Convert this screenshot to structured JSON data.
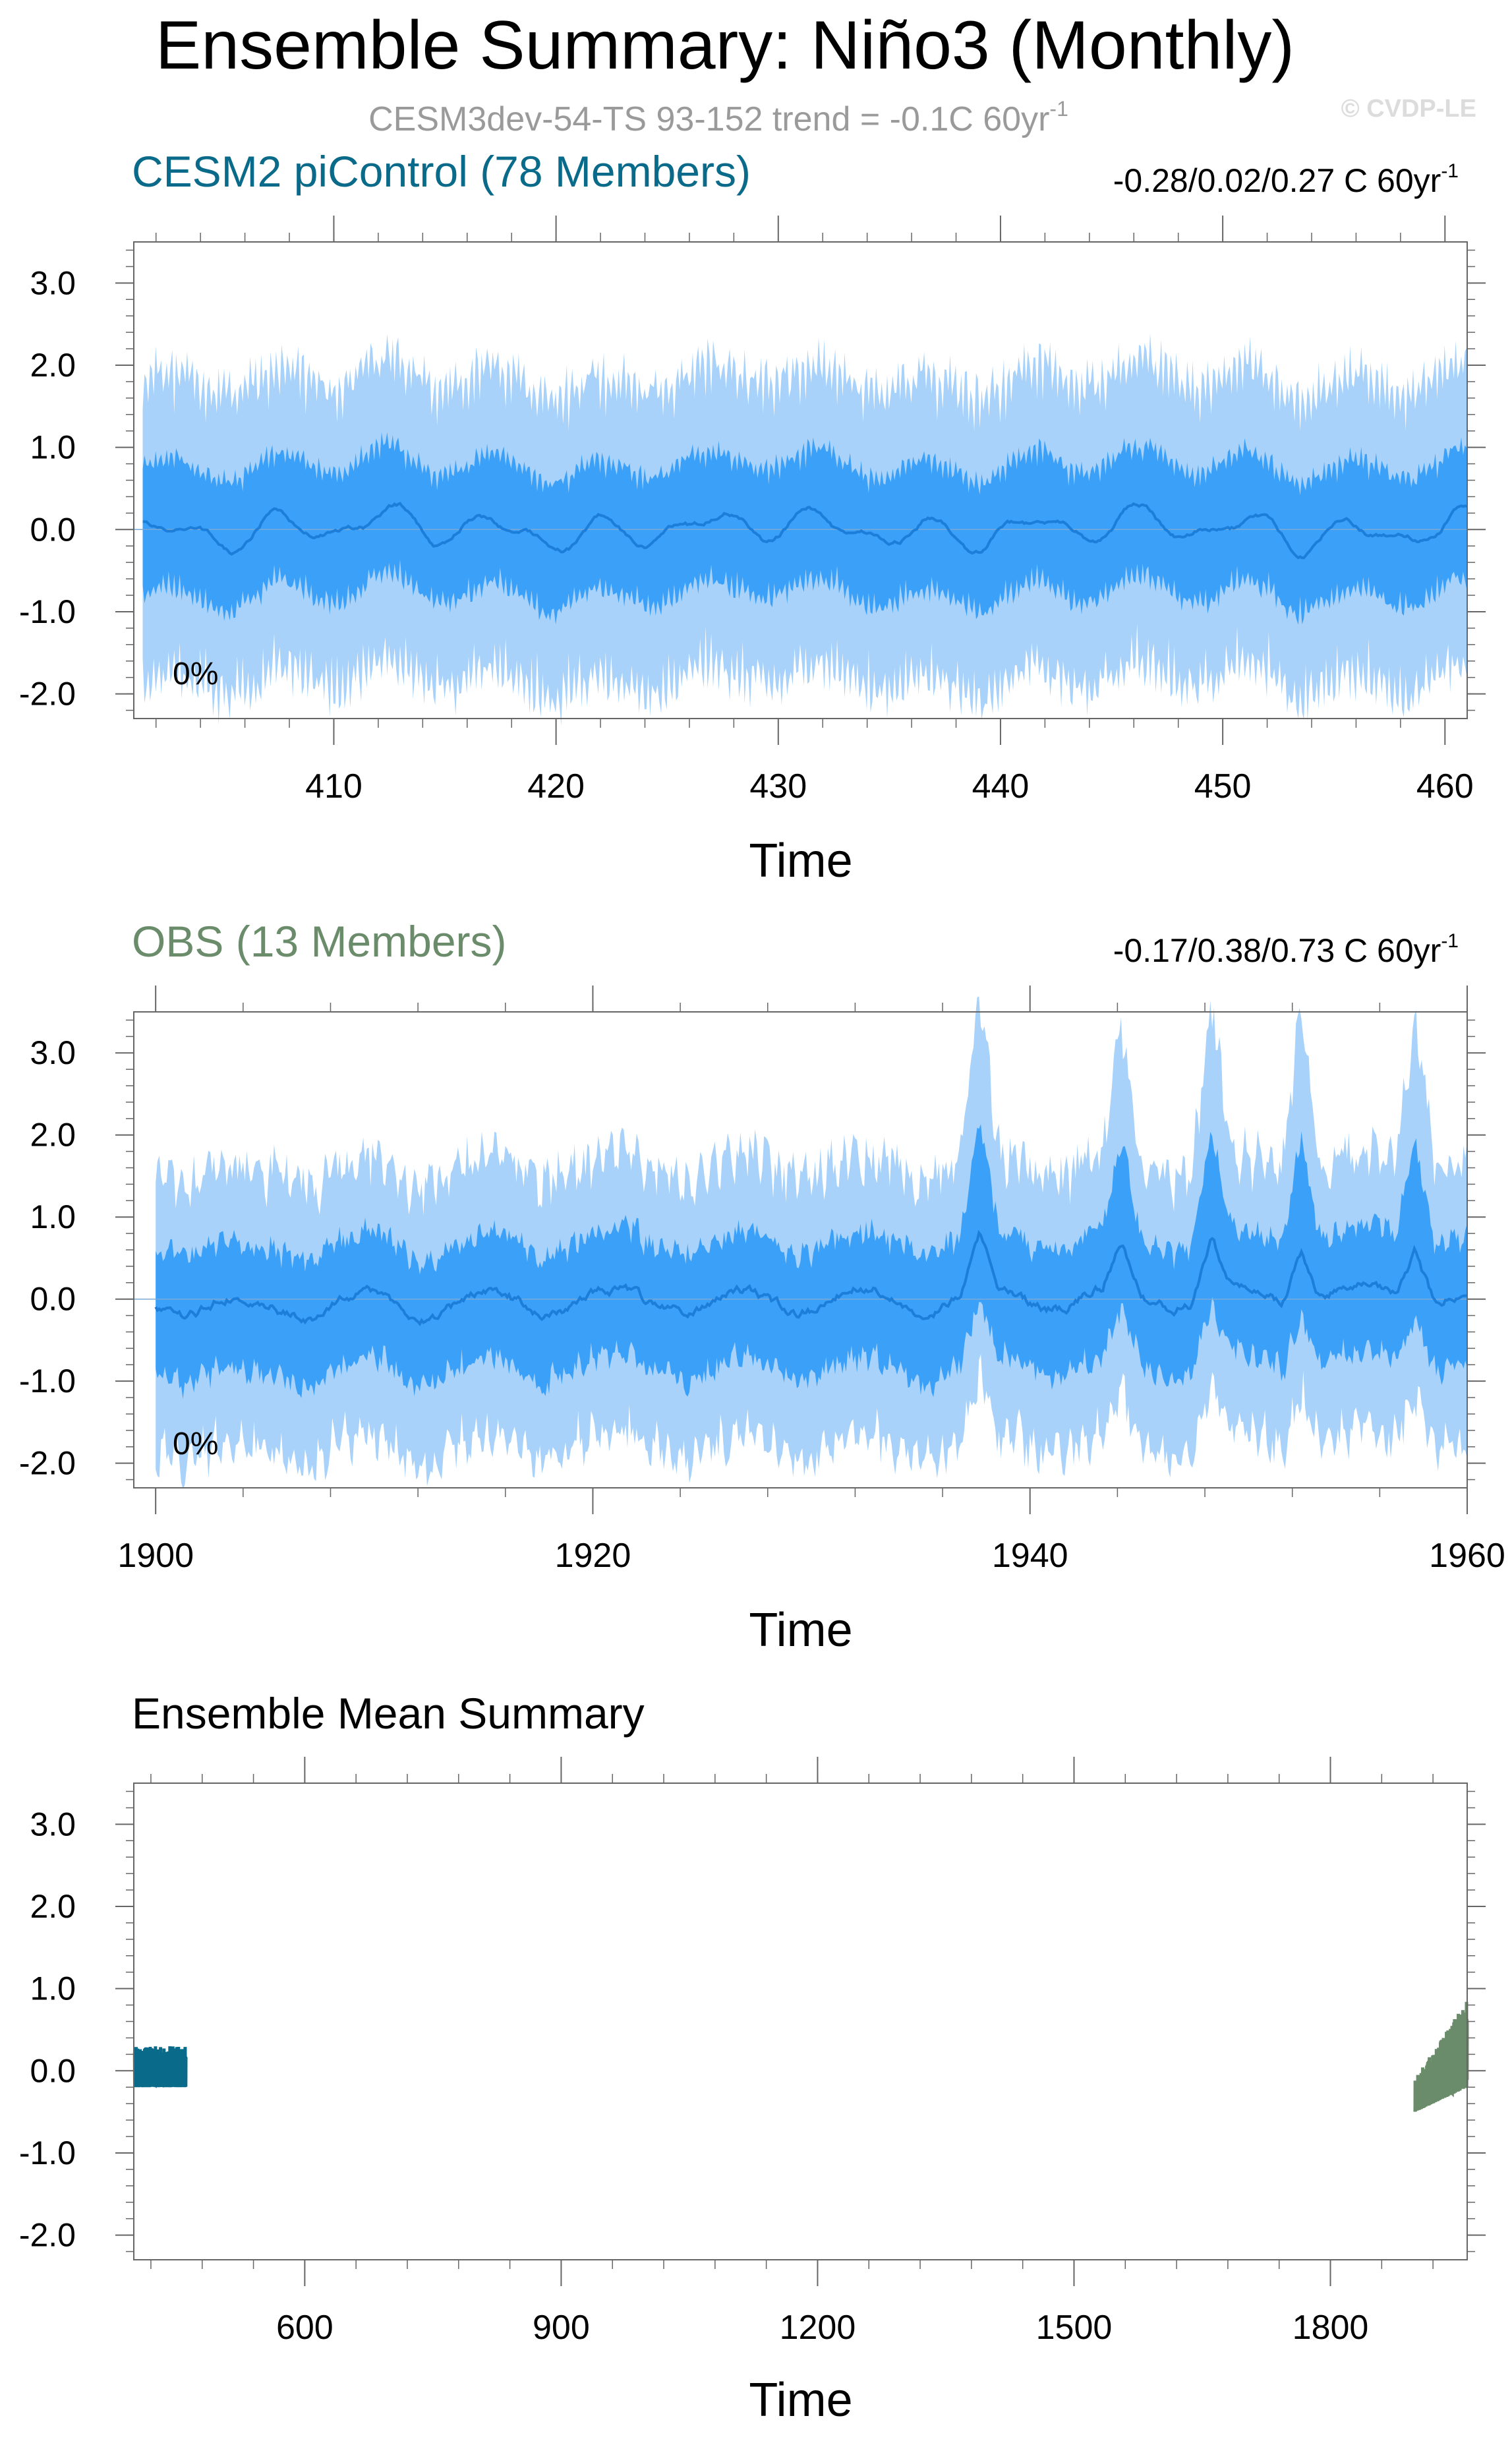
{
  "header": {
    "title": "Ensemble Summary: Niño3 (Monthly)",
    "subtitle": "CESM3dev-54-TS 93-152 trend = -0.1C 60yr",
    "subtitle_sup": "-1",
    "credit": "© CVDP-LE"
  },
  "colors": {
    "cesm": "#0a6a8a",
    "obs": "#6a8c6a",
    "band_outer": "#a8d2fa",
    "band_inner": "#3aa0f8",
    "mean_line": "#1c7ed9"
  },
  "chart_data": [
    {
      "type": "area",
      "title": "CESM2 piControl (78 Members)",
      "trend_label": "-0.28/0.02/0.27 C 60yr",
      "trend_sup": "-1",
      "percent_label": "0%",
      "xlabel": "Time",
      "ylabel": "",
      "xlim": [
        401,
        461
      ],
      "ylim": [
        -2.3,
        3.5
      ],
      "xticks": [
        410,
        420,
        430,
        440,
        450,
        460
      ],
      "yticks": [
        -2.0,
        -1.0,
        0.0,
        1.0,
        2.0,
        3.0
      ],
      "ytick_labels": [
        "-2.0",
        "-1.0",
        "0.0",
        "1.0",
        "2.0",
        "3.0"
      ],
      "grid": false,
      "series_desc": "ensemble mean with 2.5-97.5% and 10-90% ranges, monthly anomalies (C)",
      "envelope": {
        "outer_max": 2.2,
        "outer_min": -2.3,
        "inner_max": 1.1,
        "inner_min": -1.3,
        "mean_range": [
          -0.3,
          0.25
        ]
      }
    },
    {
      "type": "area",
      "title": "OBS (13 Members)",
      "trend_label": "-0.17/0.38/0.73 C 60yr",
      "trend_sup": "-1",
      "percent_label": "0%",
      "xlabel": "Time",
      "ylabel": "",
      "xlim": [
        1899,
        1960
      ],
      "ylim": [
        -2.3,
        3.5
      ],
      "xticks": [
        1900,
        1920,
        1940,
        1960
      ],
      "yticks": [
        -2.0,
        -1.0,
        0.0,
        1.0,
        2.0,
        3.0
      ],
      "ytick_labels": [
        "-2.0",
        "-1.0",
        "0.0",
        "1.0",
        "2.0",
        "3.0"
      ],
      "grid": false,
      "peaks": [
        {
          "year": 1937.7,
          "value": 3.2
        },
        {
          "year": 1944.2,
          "value": 2.9
        },
        {
          "year": 1948.3,
          "value": 3.2
        },
        {
          "year": 1952.4,
          "value": 3.3
        },
        {
          "year": 1957.6,
          "value": 3.2
        }
      ]
    },
    {
      "type": "line",
      "title": "Ensemble Mean Summary",
      "xlabel": "Time",
      "ylabel": "",
      "xlim": [
        400,
        1960
      ],
      "ylim": [
        -2.3,
        3.5
      ],
      "xticks": [
        600,
        900,
        1200,
        1500,
        1800
      ],
      "yticks": [
        -2.0,
        -1.0,
        0.0,
        1.0,
        2.0,
        3.0
      ],
      "ytick_labels": [
        "-2.0",
        "-1.0",
        "0.0",
        "1.0",
        "2.0",
        "3.0"
      ],
      "grid": false,
      "series": [
        {
          "range": [
            401,
            461
          ],
          "ymin": -0.2,
          "ymax": 0.3
        },
        {
          "range": [
            1899,
            1960
          ],
          "ymin": -0.5,
          "ymax": 0.9
        }
      ]
    }
  ]
}
